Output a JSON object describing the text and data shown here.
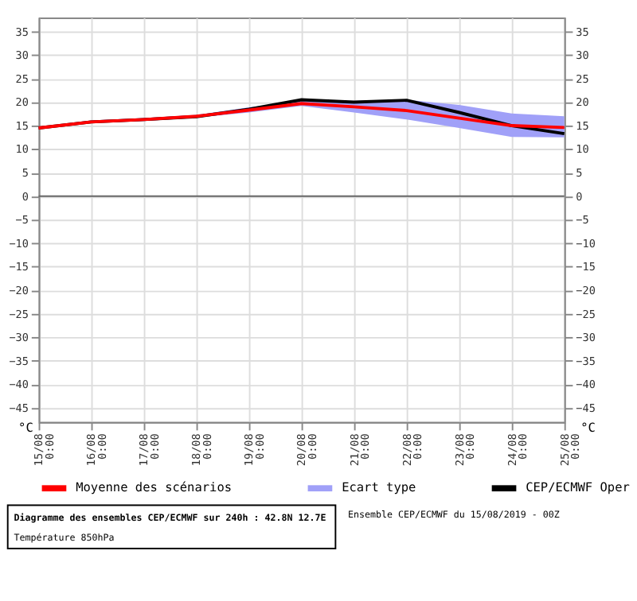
{
  "chart_data": {
    "type": "line",
    "title": "Diagramme des ensembles CEP/ECMWF sur 240h : 42.8N 12.7E",
    "subtitle": "Température 850hPa",
    "annotations": [
      "Ensemble CEP/ECMWF du 15/08/2019 - 00Z"
    ],
    "ylabel": "°C",
    "y2label": "°C",
    "x": [
      "2019-08-15",
      "2019-08-16",
      "2019-08-17",
      "2019-08-18",
      "2019-08-19",
      "2019-08-20",
      "2019-08-21",
      "2019-08-22",
      "2019-08-23",
      "2019-08-24",
      "2019-08-25"
    ],
    "series": [
      {
        "name": "Moyenne des scénarios",
        "type": "line",
        "color": "#ff0000",
        "values": [
          14.5,
          15.8,
          16.3,
          17.0,
          18.3,
          19.7,
          19.0,
          18.2,
          16.6,
          15.0,
          14.6
        ]
      },
      {
        "name": "Ecart type",
        "type": "area",
        "color": "#a0a0f8",
        "values": [
          null,
          null,
          null,
          null,
          null,
          null,
          null,
          null,
          null,
          null,
          null
        ],
        "lower": [
          14.3,
          15.6,
          16.0,
          16.7,
          17.8,
          19.2,
          17.8,
          16.3,
          14.5,
          12.6,
          12.5
        ],
        "upper": [
          14.7,
          16.1,
          16.6,
          17.3,
          18.9,
          20.2,
          20.3,
          20.5,
          19.4,
          17.6,
          17.0
        ]
      },
      {
        "name": "CEP/ECMWF Oper",
        "type": "line",
        "color": "#000000",
        "values": [
          14.5,
          15.8,
          16.3,
          16.9,
          18.5,
          20.5,
          20.0,
          20.4,
          17.8,
          15.0,
          13.3
        ]
      }
    ],
    "xlim": [
      "2019-08-15",
      "2019-08-25"
    ],
    "xticks": [
      {
        "value": "2019-08-15",
        "label": "15/08 0:00"
      },
      {
        "value": "2019-08-16",
        "label": "16/08 0:00"
      },
      {
        "value": "2019-08-17",
        "label": "17/08 0:00"
      },
      {
        "value": "2019-08-18",
        "label": "18/08 0:00"
      },
      {
        "value": "2019-08-19",
        "label": "19/08 0:00"
      },
      {
        "value": "2019-08-20",
        "label": "20/08 0:00"
      },
      {
        "value": "2019-08-21",
        "label": "21/08 0:00"
      },
      {
        "value": "2019-08-22",
        "label": "22/08 0:00"
      },
      {
        "value": "2019-08-23",
        "label": "23/08 0:00"
      },
      {
        "value": "2019-08-24",
        "label": "24/08 0:00"
      },
      {
        "value": "2019-08-25",
        "label": "25/08 0:00"
      }
    ],
    "ylim": [
      -48,
      38
    ],
    "yticks": [
      -45,
      -40,
      -35,
      -30,
      -25,
      -20,
      -15,
      -10,
      -5,
      0,
      5,
      10,
      15,
      20,
      25,
      30,
      35
    ],
    "y2lim": [
      -48,
      38
    ],
    "y2ticks": [
      -45,
      -40,
      -35,
      -30,
      -25,
      -20,
      -15,
      -10,
      -5,
      0,
      5,
      10,
      15,
      20,
      25,
      30,
      35
    ],
    "ref_lines": [
      {
        "axis": "y",
        "value": 0,
        "color": "#666666"
      }
    ],
    "grid": true,
    "legend": "bottom",
    "marker": "none",
    "line_style": "solid"
  }
}
